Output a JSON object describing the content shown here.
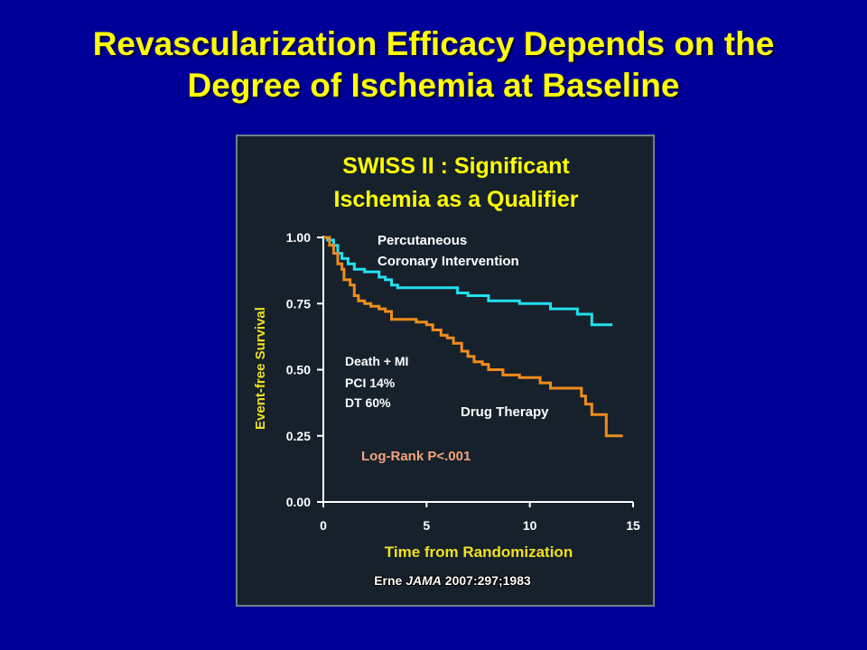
{
  "slide": {
    "title_line1": "Revascularization Efficacy Depends on the",
    "title_line2": "Degree of Ischemia at Baseline"
  },
  "colors": {
    "background": "#000099",
    "title": "#ffff00",
    "panel": "#16212c",
    "pci_line": "#22e0ee",
    "dt_line": "#f08c1c",
    "axis_label": "#f0e020",
    "logrank": "#f4a37a"
  },
  "chart_data": {
    "type": "line",
    "title_line1": "SWISS II : Significant",
    "title_line2": "Ischemia as a Qualifier",
    "xlabel": "Time from Randomization",
    "ylabel": "Event-free Survival",
    "xlim": [
      0,
      15
    ],
    "ylim": [
      0,
      1
    ],
    "x_ticks": [
      "0",
      "5",
      "10",
      "15"
    ],
    "x_tick_values": [
      0,
      5,
      10,
      15
    ],
    "y_ticks": [
      "0.00",
      "0.25",
      "0.50",
      "0.75",
      "1.00"
    ],
    "y_tick_values": [
      0,
      0.25,
      0.5,
      0.75,
      1.0
    ],
    "grid": false,
    "step": true,
    "series": [
      {
        "name": "Percutaneous Coronary Intervention",
        "label_line1": "Percutaneous",
        "label_line2": "Coronary Intervention",
        "x": [
          0,
          0.2,
          0.5,
          0.7,
          0.9,
          1.2,
          1.5,
          2.0,
          2.7,
          3.0,
          3.3,
          3.6,
          4.0,
          5.0,
          6.5,
          7.0,
          8.0,
          9.5,
          10.0,
          11.0,
          12.3,
          13.0,
          14.0
        ],
        "y": [
          1.0,
          0.99,
          0.97,
          0.94,
          0.92,
          0.9,
          0.88,
          0.87,
          0.85,
          0.84,
          0.82,
          0.81,
          0.81,
          0.81,
          0.79,
          0.78,
          0.76,
          0.75,
          0.75,
          0.73,
          0.71,
          0.67,
          0.67
        ]
      },
      {
        "name": "Drug Therapy",
        "label": "Drug Therapy",
        "x": [
          0,
          0.3,
          0.5,
          0.7,
          0.9,
          1.0,
          1.3,
          1.5,
          1.7,
          2.0,
          2.3,
          2.7,
          3.0,
          3.3,
          4.5,
          5.0,
          5.3,
          5.7,
          6.0,
          6.3,
          6.7,
          7.0,
          7.3,
          7.7,
          8.0,
          8.7,
          9.5,
          10.5,
          11.0,
          12.5,
          12.7,
          13.0,
          13.7,
          14.5
        ],
        "y": [
          1.0,
          0.97,
          0.94,
          0.9,
          0.88,
          0.84,
          0.82,
          0.78,
          0.76,
          0.75,
          0.74,
          0.73,
          0.72,
          0.69,
          0.68,
          0.67,
          0.65,
          0.63,
          0.62,
          0.6,
          0.57,
          0.55,
          0.53,
          0.52,
          0.5,
          0.48,
          0.47,
          0.45,
          0.43,
          0.4,
          0.37,
          0.33,
          0.25,
          0.25
        ]
      }
    ],
    "annotations": {
      "death_mi": "Death + MI",
      "pci_rate": "PCI 14%",
      "dt_rate": "DT 60%",
      "logrank": "Log-Rank P<.001"
    },
    "citation_prefix": "Erne ",
    "citation_journal": "JAMA",
    "citation_suffix": " 2007:297;1983"
  }
}
